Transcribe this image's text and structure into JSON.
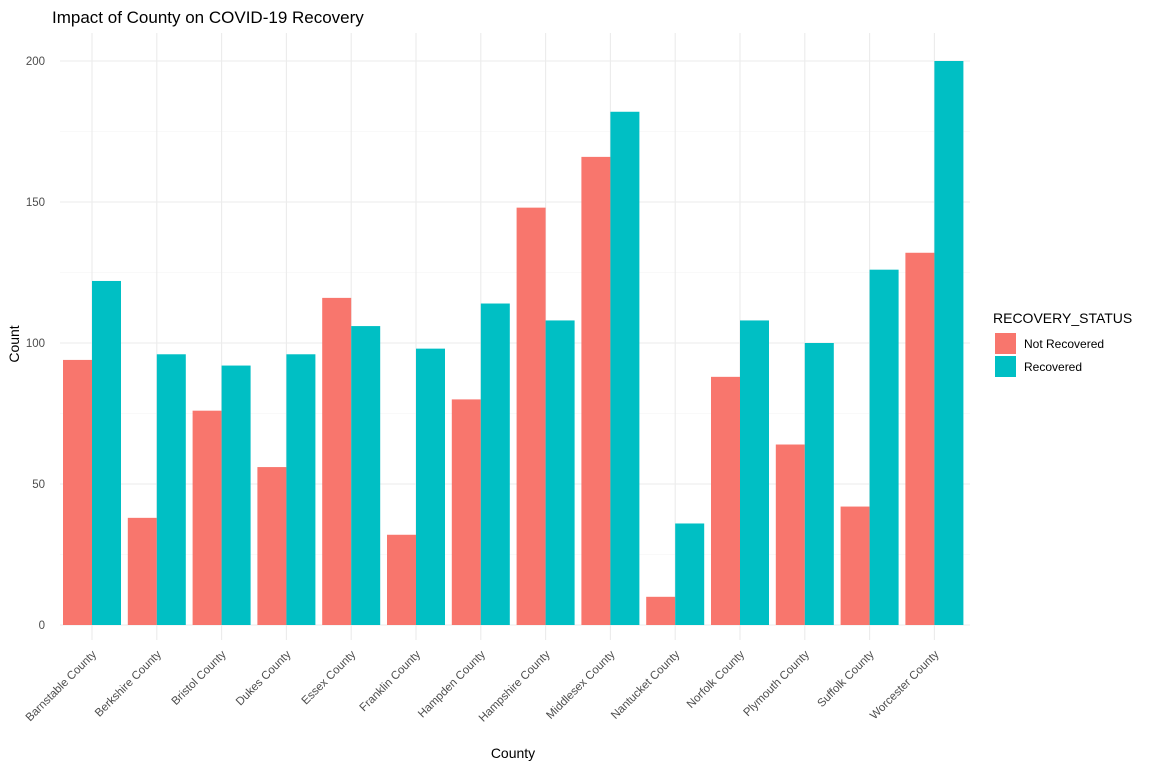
{
  "chart_data": {
    "type": "bar",
    "title": "Impact of County on COVID-19 Recovery",
    "xlabel": "County",
    "ylabel": "Count",
    "ylim": [
      0,
      200
    ],
    "yticks": [
      0,
      50,
      100,
      150,
      200
    ],
    "grid": true,
    "legend_title": "RECOVERY_STATUS",
    "legend_position": "right",
    "categories": [
      "Barnstable County",
      "Berkshire County",
      "Bristol County",
      "Dukes County",
      "Essex County",
      "Franklin County",
      "Hampden County",
      "Hampshire County",
      "Middlesex County",
      "Nantucket County",
      "Norfolk County",
      "Plymouth County",
      "Suffolk County",
      "Worcester County"
    ],
    "series": [
      {
        "name": "Not Recovered",
        "color": "#F8766D",
        "values": [
          94,
          38,
          76,
          56,
          116,
          32,
          80,
          148,
          166,
          10,
          88,
          64,
          42,
          132
        ]
      },
      {
        "name": "Recovered",
        "color": "#00BFC4",
        "values": [
          122,
          96,
          92,
          96,
          106,
          98,
          114,
          108,
          182,
          36,
          108,
          100,
          126,
          200
        ]
      }
    ]
  }
}
